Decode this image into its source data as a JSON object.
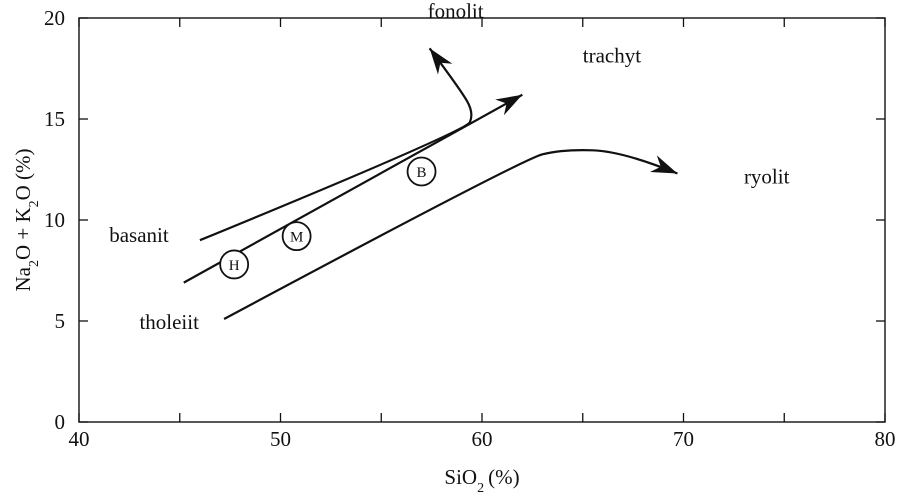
{
  "chart_data": {
    "type": "line",
    "title": "",
    "xlabel": {
      "main": "SiO",
      "sub": "2",
      "unit": "(%)"
    },
    "ylabel": [
      {
        "t": "Na",
        "sub": false
      },
      {
        "t": "2",
        "sub": true
      },
      {
        "t": "O + K",
        "sub": false
      },
      {
        "t": "2",
        "sub": true
      },
      {
        "t": "O  (%)",
        "sub": false
      }
    ],
    "xlim": [
      40,
      80
    ],
    "ylim": [
      0,
      20
    ],
    "x_major_ticks": [
      40,
      50,
      60,
      70,
      80
    ],
    "x_minor_ticks": [
      45,
      55,
      65,
      75
    ],
    "y_major_ticks": [
      0,
      5,
      10,
      15,
      20
    ],
    "x_tick_labels": [
      "40",
      "50",
      "60",
      "70",
      "80"
    ],
    "y_tick_labels": [
      "0",
      "5",
      "10",
      "15",
      "20"
    ],
    "grid": false,
    "legend": "none",
    "series": [
      {
        "name": "basanit",
        "points": [
          [
            46.0,
            9.0
          ],
          [
            59.2,
            14.4
          ],
          [
            59.6,
            15.3
          ],
          [
            58.9,
            16.5
          ],
          [
            57.4,
            18.5
          ]
        ],
        "arrow": true
      },
      {
        "name": "trachyt",
        "points": [
          [
            45.2,
            6.9
          ],
          [
            62.0,
            16.2
          ]
        ],
        "arrow": true
      },
      {
        "name": "tholeiit",
        "points": [
          [
            47.2,
            5.1
          ],
          [
            62.0,
            13.0
          ],
          [
            64.0,
            13.5
          ],
          [
            67.0,
            13.4
          ],
          [
            69.7,
            12.3
          ]
        ],
        "arrow": true
      }
    ],
    "annotations": [
      {
        "text": "fonolit",
        "x": 57.3,
        "y": 20.0
      },
      {
        "text": "trachyt",
        "x": 65.0,
        "y": 17.8
      },
      {
        "text": "ryolit",
        "x": 73.0,
        "y": 11.8
      },
      {
        "text": "basanit",
        "x": 41.5,
        "y": 8.9
      },
      {
        "text": "tholeiit",
        "x": 43.0,
        "y": 4.6
      }
    ],
    "markers": [
      {
        "label": "H",
        "x": 47.7,
        "y": 7.8
      },
      {
        "label": "M",
        "x": 50.8,
        "y": 9.2
      },
      {
        "label": "B",
        "x": 57.0,
        "y": 12.4
      }
    ]
  }
}
